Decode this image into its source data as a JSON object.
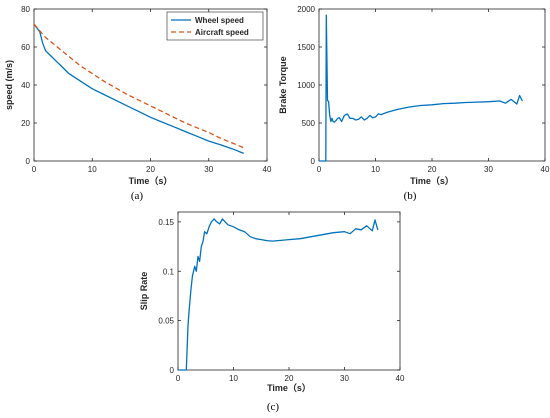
{
  "chart_data": [
    {
      "type": "line",
      "panel": "a",
      "caption": "(a)",
      "xlabel": "Time（s）",
      "ylabel": "speed (m/s)",
      "xlim": [
        0,
        40
      ],
      "ylim": [
        0,
        80
      ],
      "xticks": [
        "0",
        "10",
        "20",
        "30",
        "40"
      ],
      "yticks": [
        "0",
        "20",
        "40",
        "60",
        "80"
      ],
      "grid": false,
      "legend_position": "top-right",
      "series": [
        {
          "name": "Wheel speed",
          "color": "#0072BD",
          "style": "solid",
          "x": [
            0,
            0.5,
            1,
            1.5,
            2,
            3,
            4,
            5,
            6,
            8,
            10,
            12,
            14,
            16,
            18,
            20,
            22,
            24,
            26,
            28,
            30,
            32,
            34,
            36
          ],
          "y": [
            72,
            70,
            68,
            62,
            58,
            55,
            52,
            49,
            46,
            42,
            38,
            35,
            32,
            29,
            26,
            23,
            20.5,
            18,
            15.5,
            13,
            10.5,
            8.5,
            6.5,
            4
          ]
        },
        {
          "name": "Aircraft speed",
          "color": "#D95319",
          "style": "dashed",
          "x": [
            0,
            2,
            4,
            6,
            8,
            10,
            12,
            14,
            16,
            18,
            20,
            22,
            24,
            26,
            28,
            30,
            32,
            34,
            36
          ],
          "y": [
            72,
            65,
            60,
            55,
            50,
            46,
            42,
            38.5,
            35,
            32,
            29,
            26,
            23,
            20,
            17.5,
            15,
            12,
            9.5,
            7
          ]
        }
      ]
    },
    {
      "type": "line",
      "panel": "b",
      "caption": "(b)",
      "xlabel": "Time（s）",
      "ylabel": "Brake Torque",
      "xlim": [
        0,
        40
      ],
      "ylim": [
        0,
        2000
      ],
      "xticks": [
        "0",
        "10",
        "20",
        "30",
        "40"
      ],
      "yticks": [
        "0",
        "500",
        "1000",
        "1500",
        "2000"
      ],
      "grid": false,
      "series": [
        {
          "color": "#0072BD",
          "x": [
            0,
            1.2,
            1.3,
            1.5,
            1.7,
            1.9,
            2.1,
            2.3,
            2.5,
            2.7,
            3,
            3.3,
            3.6,
            4,
            4.5,
            5,
            5.5,
            6,
            6.5,
            7,
            7.5,
            8,
            8.5,
            9,
            9.5,
            10,
            10.5,
            11,
            12,
            14,
            16,
            18,
            20,
            22,
            24,
            26,
            28,
            30,
            32,
            33,
            34,
            35,
            35.5,
            36
          ],
          "y": [
            0,
            0,
            1920,
            800,
            780,
            600,
            520,
            560,
            520,
            510,
            530,
            560,
            570,
            520,
            600,
            620,
            560,
            560,
            540,
            550,
            580,
            540,
            560,
            600,
            570,
            580,
            620,
            610,
            640,
            680,
            710,
            730,
            740,
            755,
            760,
            770,
            775,
            780,
            790,
            760,
            810,
            750,
            860,
            790
          ]
        }
      ]
    },
    {
      "type": "line",
      "panel": "c",
      "caption": "(c)",
      "xlabel": "Time（s）",
      "ylabel": "Slip Rate",
      "xlim": [
        0,
        40
      ],
      "ylim": [
        0,
        0.16
      ],
      "xticks": [
        "0",
        "10",
        "20",
        "30",
        "40"
      ],
      "yticks": [
        "0",
        "0.05",
        "0.1",
        "0.15"
      ],
      "grid": false,
      "series": [
        {
          "color": "#0072BD",
          "x": [
            0,
            1.5,
            1.8,
            2,
            2.3,
            2.6,
            3,
            3.3,
            3.6,
            3.9,
            4.2,
            4.5,
            4.8,
            5.2,
            5.6,
            6,
            6.5,
            7,
            7.5,
            8,
            8.5,
            9,
            10,
            11,
            12,
            13,
            14,
            15,
            16,
            17,
            18,
            20,
            22,
            24,
            26,
            28,
            30,
            31,
            32,
            33,
            34,
            35,
            35.5,
            36
          ],
          "y": [
            0,
            0,
            0.045,
            0.06,
            0.08,
            0.095,
            0.105,
            0.1,
            0.115,
            0.11,
            0.125,
            0.13,
            0.14,
            0.138,
            0.145,
            0.15,
            0.153,
            0.15,
            0.148,
            0.153,
            0.15,
            0.147,
            0.145,
            0.142,
            0.14,
            0.135,
            0.133,
            0.132,
            0.131,
            0.1305,
            0.131,
            0.132,
            0.133,
            0.135,
            0.137,
            0.139,
            0.14,
            0.138,
            0.143,
            0.142,
            0.146,
            0.141,
            0.152,
            0.142
          ]
        }
      ]
    }
  ]
}
